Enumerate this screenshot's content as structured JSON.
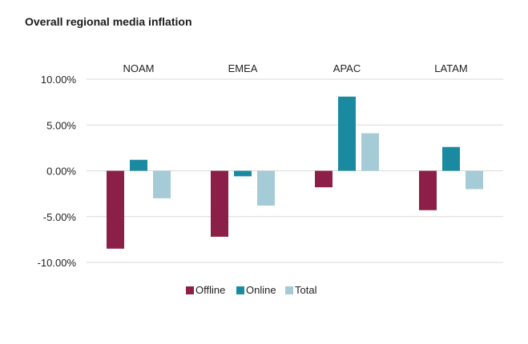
{
  "chart_data": {
    "type": "bar",
    "title": "Overall regional media inflation",
    "categories": [
      "NOAM",
      "EMEA",
      "APAC",
      "LATAM"
    ],
    "series": [
      {
        "name": "Offline",
        "color": "#8b1f48",
        "values": [
          -8.5,
          -7.2,
          -1.8,
          -4.3
        ]
      },
      {
        "name": "Online",
        "color": "#1a8aa0",
        "values": [
          1.2,
          -0.6,
          8.1,
          2.6
        ]
      },
      {
        "name": "Total",
        "color": "#a5ccd6",
        "values": [
          -3.0,
          -3.8,
          4.1,
          -2.0
        ]
      }
    ],
    "y_ticks": [
      10,
      5,
      0,
      -5,
      -10
    ],
    "y_tick_labels": [
      "10.00%",
      "5.00%",
      "0.00%",
      "-5.00%",
      "-10.00%"
    ],
    "ylim": [
      -10,
      10
    ],
    "grid": true,
    "legend_position": "bottom-center",
    "category_label_position": "top"
  }
}
